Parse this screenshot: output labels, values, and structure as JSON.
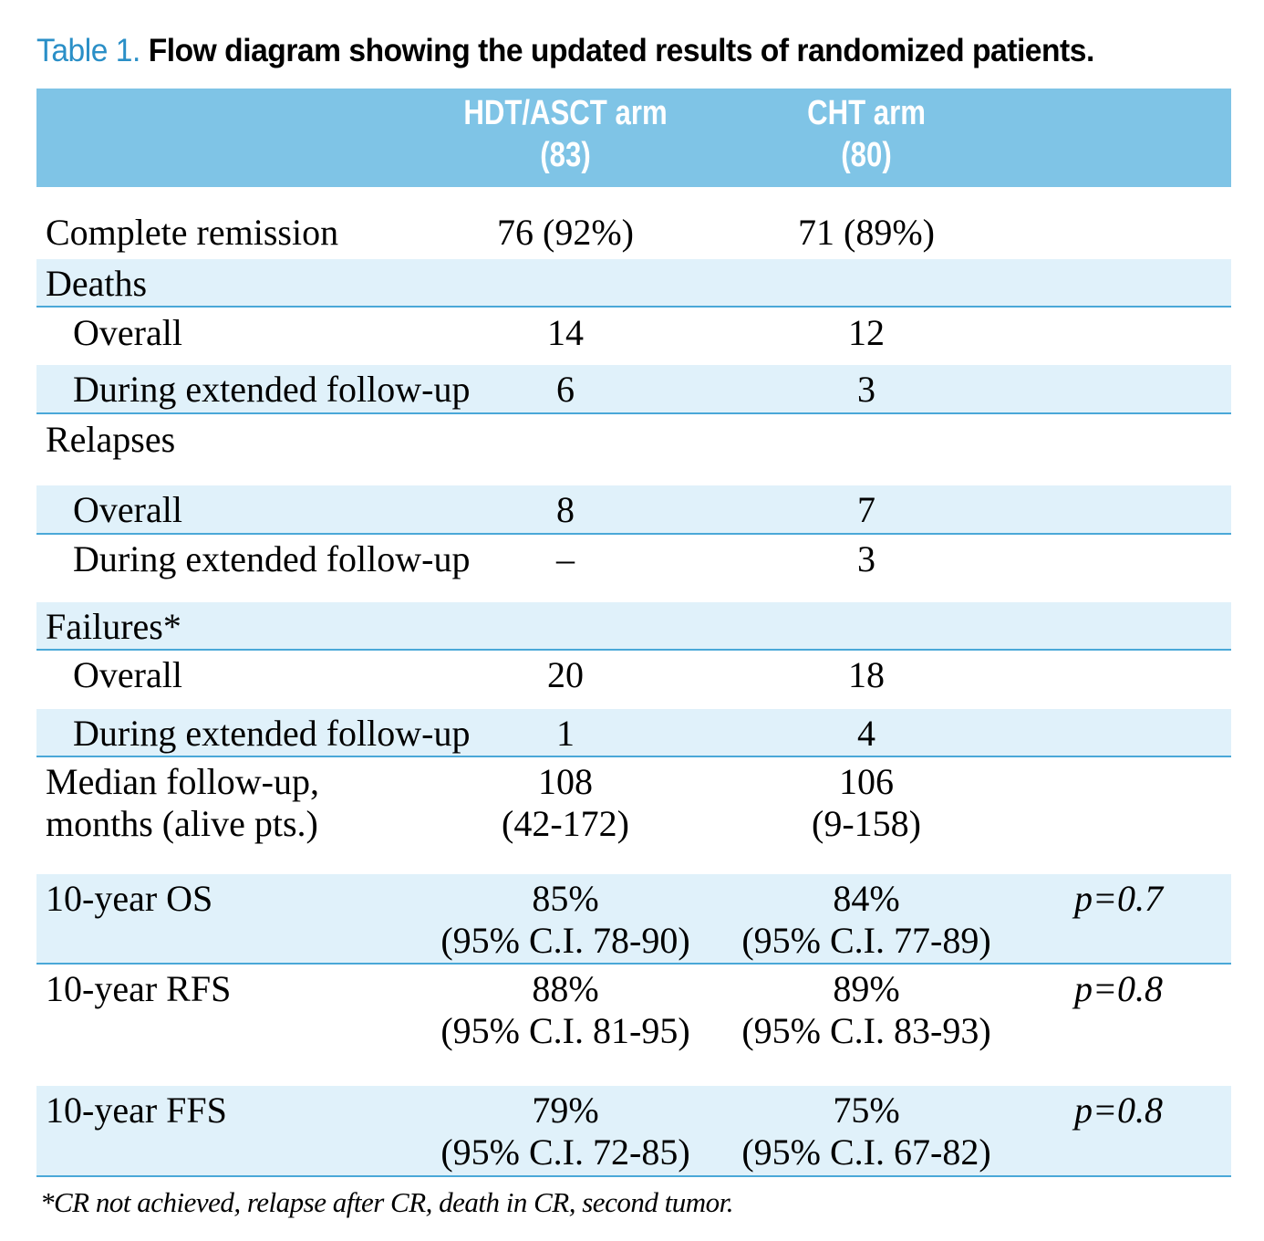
{
  "title": {
    "number": "Table 1.",
    "text": "Flow diagram showing the updated results of randomized patients."
  },
  "table": {
    "header": [
      [
        "HDT/ASCT arm",
        "(83)"
      ],
      [
        "CHT arm",
        "(80)"
      ]
    ],
    "rows": [
      {
        "label": [
          "Complete remission"
        ],
        "values": [
          [
            "76 (92%)"
          ],
          [
            "71 (89%)"
          ]
        ]
      },
      {
        "label": [
          "Deaths"
        ]
      },
      {
        "label": [
          "Overall"
        ],
        "values": [
          [
            "14"
          ],
          [
            "12"
          ]
        ]
      },
      {
        "label": [
          "During extended follow-up"
        ],
        "values": [
          [
            "6"
          ],
          [
            "3"
          ]
        ]
      },
      {
        "label": [
          "Relapses"
        ]
      },
      {
        "label": [
          "Overall"
        ],
        "values": [
          [
            "8"
          ],
          [
            "7"
          ]
        ]
      },
      {
        "label": [
          "During extended follow-up"
        ],
        "values": [
          [
            "–"
          ],
          [
            "3"
          ]
        ]
      },
      {
        "label": [
          "Failures*"
        ]
      },
      {
        "label": [
          "Overall"
        ],
        "values": [
          [
            "20"
          ],
          [
            "18"
          ]
        ]
      },
      {
        "label": [
          "During extended follow-up"
        ],
        "values": [
          [
            "1"
          ],
          [
            "4"
          ]
        ]
      },
      {
        "label": [
          "Median follow-up,",
          "months (alive pts.)"
        ],
        "values": [
          [
            "108",
            "(42-172)"
          ],
          [
            "106",
            "(9-158)"
          ]
        ]
      },
      {
        "label": [
          "10-year OS"
        ],
        "values": [
          [
            "85%",
            "(95% C.I. 78-90)"
          ],
          [
            "84%",
            "(95% C.I. 77-89)"
          ]
        ],
        "p": "p=0.7"
      },
      {
        "label": [
          "10-year RFS"
        ],
        "values": [
          [
            "88%",
            "(95% C.I. 81-95)"
          ],
          [
            "89%",
            "(95% C.I. 83-93)"
          ]
        ],
        "p": "p=0.8"
      },
      {
        "label": [
          "10-year FFS"
        ],
        "values": [
          [
            "79%",
            "(95% C.I. 72-85)"
          ],
          [
            "75%",
            "(95% C.I. 67-82)"
          ]
        ],
        "p": "p=0.8"
      }
    ]
  },
  "footnote": "*CR not achieved, relapse after CR, death in CR, second tumor."
}
